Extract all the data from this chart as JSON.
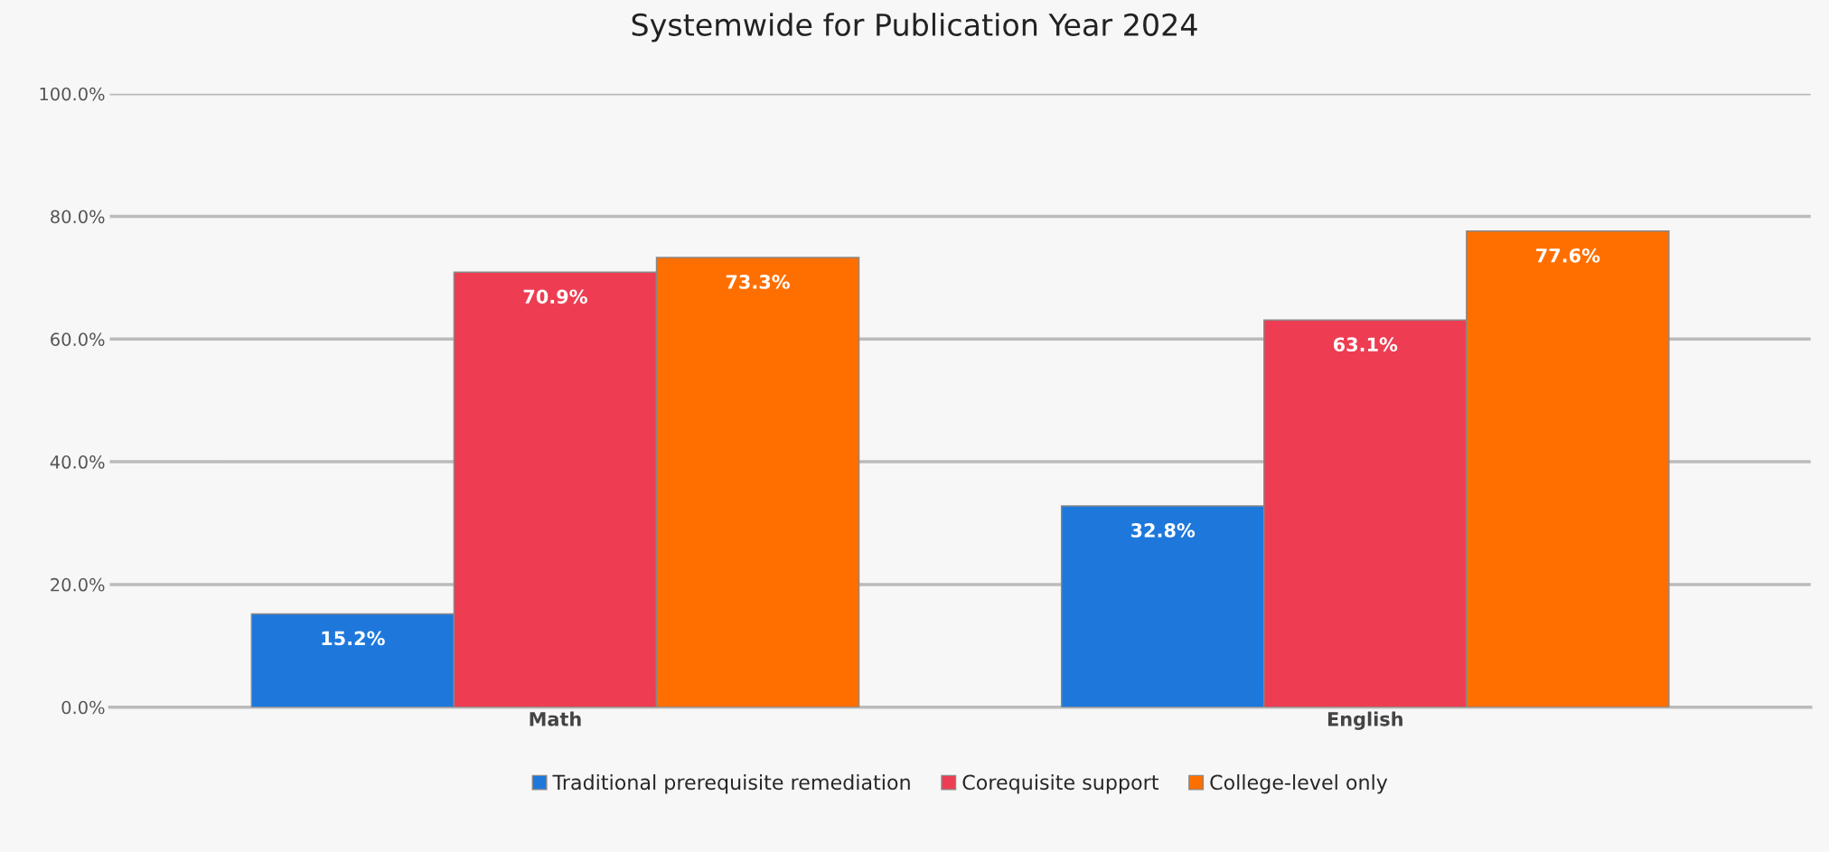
{
  "chart_data": {
    "type": "bar",
    "title": "Systemwide for Publication Year 2024",
    "categories": [
      "Math",
      "English"
    ],
    "series": [
      {
        "name": "Traditional prerequisite remediation",
        "color": "#1e78dc",
        "values": [
          15.2,
          32.8
        ]
      },
      {
        "name": "Corequisite support",
        "color": "#ee3d52",
        "values": [
          70.9,
          63.1
        ]
      },
      {
        "name": "College-level only",
        "color": "#ff6f00",
        "values": [
          73.3,
          77.6
        ]
      }
    ],
    "ylim": [
      0,
      100
    ],
    "yticks": [
      {
        "value": 0,
        "label": "0.0%"
      },
      {
        "value": 20,
        "label": "20.0%"
      },
      {
        "value": 40,
        "label": "40.0%"
      },
      {
        "value": 60,
        "label": "60.0%"
      },
      {
        "value": 80,
        "label": "80.0%"
      },
      {
        "value": 100,
        "label": "100.0%"
      }
    ],
    "value_labels": [
      [
        "15.2%",
        "32.8%"
      ],
      [
        "70.9%",
        "63.1%"
      ],
      [
        "73.3%",
        "77.6%"
      ]
    ],
    "grid": "y",
    "legend": "bottom"
  }
}
